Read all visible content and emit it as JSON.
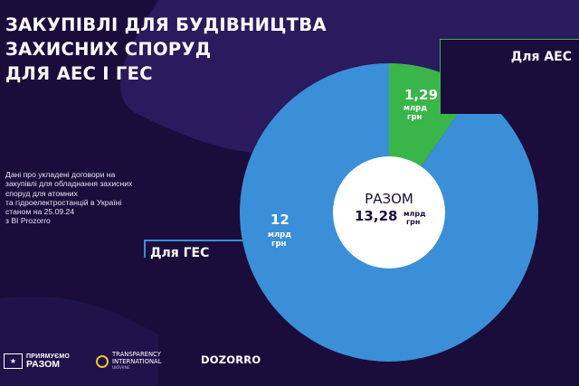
{
  "title_lines": [
    "ЗАКУПІВЛІ ДЛЯ БУДІВНИЦТВА",
    "ЗАХИСНИХ СПОРУД",
    "ДЛЯ АЕС І ГЕС"
  ],
  "note_lines": [
    "Дані про укладені договори на",
    "закупівлі для обладнання захисних",
    "споруд для атомних",
    "та гідроелектростанцій в Україні",
    "станом на 25.09.24",
    "з BI Prozorro"
  ],
  "chart_data": {
    "type": "pie",
    "title": "ЗАКУПІВЛІ ДЛЯ БУДІВНИЦТВА ЗАХИСНИХ СПОРУД ДЛЯ АЕС І ГЕС",
    "unit": "млрд грн",
    "slices": [
      {
        "name": "Для АЕС",
        "value": 1.29,
        "value_text": "1,29",
        "color": "#39b54a"
      },
      {
        "name": "Для ГЕС",
        "value": 12,
        "value_text": "12",
        "color": "#3a8fd8"
      }
    ],
    "total": {
      "label": "РАЗОМ",
      "value": 13.28,
      "value_text": "13,28"
    },
    "unit_line1": "млрд",
    "unit_line2": "грн"
  },
  "colors": {
    "background": "#1a0d3c",
    "wave": "#2b1a5e",
    "aes": "#39b54a",
    "ges": "#3a8fd8",
    "center": "#ffffff",
    "text": "#ffffff"
  },
  "footer": {
    "eu_small": "ПРИЯМУЄМО",
    "eu_big": "РАЗОМ",
    "eu_flag_icon": "eu-flag-icon",
    "ti_line1": "TRANSPARENCY",
    "ti_line2": "INTERNATIONAL",
    "ti_line3": "UKRAINE",
    "dozorro": "DOZORRO"
  }
}
